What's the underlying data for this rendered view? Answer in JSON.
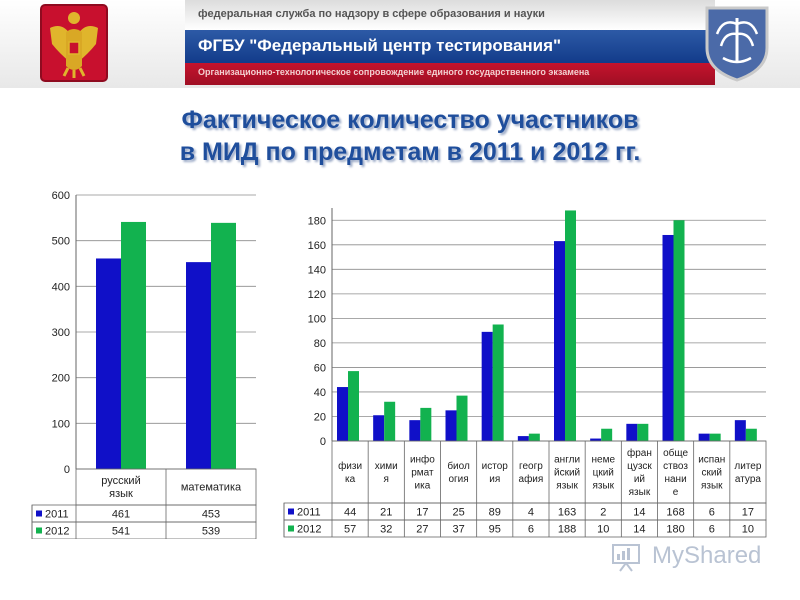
{
  "header": {
    "agency": "федеральная служба по надзору в сфере образования и науки",
    "org": "ФГБУ \"Федеральный центр тестирования\"",
    "subtitle": "Организационно-технологическое сопровождение единого государственного экзамена"
  },
  "slide": {
    "title_line1": "Фактическое количество участников",
    "title_line2": "в МИД по предметам в 2011 и 2012 гг."
  },
  "logo": {
    "text": "MyShared"
  },
  "colors": {
    "series_2011": "#1010c8",
    "series_2012": "#12b24f",
    "header_blue": "#1a4590",
    "header_red": "#b3142b",
    "title": "#1f4e9c"
  },
  "chart_data": [
    {
      "type": "bar",
      "categories": [
        [
          "русский",
          "язык"
        ],
        [
          "математика"
        ]
      ],
      "series": [
        {
          "name": "2011",
          "values": [
            461,
            453
          ]
        },
        {
          "name": "2012",
          "values": [
            541,
            539
          ]
        }
      ],
      "yticks": [
        0,
        100,
        200,
        300,
        400,
        500,
        600
      ],
      "ylim": [
        0,
        600
      ],
      "legend": "data-table"
    },
    {
      "type": "bar",
      "categories": [
        [
          "физи",
          "ка"
        ],
        [
          "хими",
          "я"
        ],
        [
          "инфо",
          "рмат",
          "ика"
        ],
        [
          "биол",
          "огия"
        ],
        [
          "истор",
          "ия"
        ],
        [
          "геогр",
          "афия"
        ],
        [
          "англи",
          "йский",
          "язык"
        ],
        [
          "неме",
          "цкий",
          "язык"
        ],
        [
          "фран",
          "цузск",
          "ий",
          "язык"
        ],
        [
          "обще",
          "ствоз",
          "нани",
          "е"
        ],
        [
          "испан",
          "ский",
          "язык"
        ],
        [
          "литер",
          "атура"
        ]
      ],
      "series": [
        {
          "name": "2011",
          "values": [
            44,
            21,
            17,
            25,
            89,
            4,
            163,
            2,
            14,
            168,
            6,
            17
          ]
        },
        {
          "name": "2012",
          "values": [
            57,
            32,
            27,
            37,
            95,
            6,
            188,
            10,
            14,
            180,
            6,
            10
          ]
        }
      ],
      "yticks": [
        0,
        20,
        40,
        60,
        80,
        100,
        120,
        140,
        160,
        180
      ],
      "ylim": [
        0,
        190
      ],
      "legend": "data-table"
    }
  ]
}
